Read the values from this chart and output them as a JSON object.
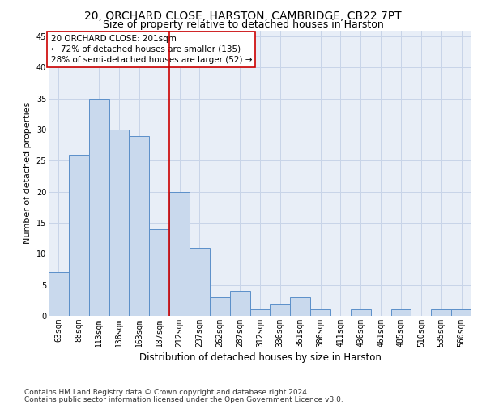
{
  "title1": "20, ORCHARD CLOSE, HARSTON, CAMBRIDGE, CB22 7PT",
  "title2": "Size of property relative to detached houses in Harston",
  "xlabel": "Distribution of detached houses by size in Harston",
  "ylabel": "Number of detached properties",
  "categories": [
    "63sqm",
    "88sqm",
    "113sqm",
    "138sqm",
    "163sqm",
    "187sqm",
    "212sqm",
    "237sqm",
    "262sqm",
    "287sqm",
    "312sqm",
    "336sqm",
    "361sqm",
    "386sqm",
    "411sqm",
    "436sqm",
    "461sqm",
    "485sqm",
    "510sqm",
    "535sqm",
    "560sqm"
  ],
  "values": [
    7,
    26,
    35,
    30,
    29,
    14,
    20,
    11,
    3,
    4,
    1,
    2,
    3,
    1,
    0,
    1,
    0,
    1,
    0,
    1,
    1
  ],
  "bar_color": "#c9d9ed",
  "bar_edge_color": "#5b8fc9",
  "vline_x": 5.5,
  "vline_color": "#cc0000",
  "annotation_line1": "20 ORCHARD CLOSE: 201sqm",
  "annotation_line2": "← 72% of detached houses are smaller (135)",
  "annotation_line3": "28% of semi-detached houses are larger (52) →",
  "annotation_box_color": "#ffffff",
  "annotation_box_edge_color": "#cc0000",
  "ylim": [
    0,
    46
  ],
  "yticks": [
    0,
    5,
    10,
    15,
    20,
    25,
    30,
    35,
    40,
    45
  ],
  "background_color": "#ffffff",
  "plot_bg_color": "#e8eef7",
  "grid_color": "#c8d4e8",
  "footer1": "Contains HM Land Registry data © Crown copyright and database right 2024.",
  "footer2": "Contains public sector information licensed under the Open Government Licence v3.0.",
  "title1_fontsize": 10,
  "title2_fontsize": 9,
  "xlabel_fontsize": 8.5,
  "ylabel_fontsize": 8,
  "tick_fontsize": 7,
  "annotation_fontsize": 7.5,
  "footer_fontsize": 6.5
}
